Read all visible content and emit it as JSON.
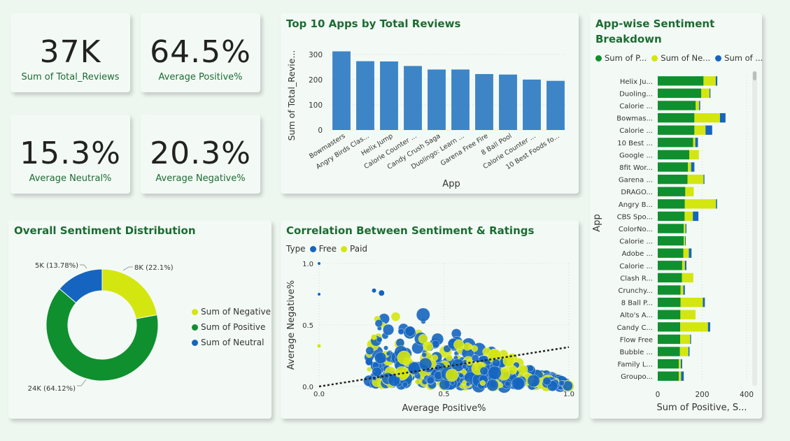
{
  "kpis": [
    {
      "value": "37K",
      "label": "Sum of Total_Reviews"
    },
    {
      "value": "64.5%",
      "label": "Average Positive%"
    },
    {
      "value": "15.3%",
      "label": "Average Neutral%"
    },
    {
      "value": "20.3%",
      "label": "Average Negative%"
    }
  ],
  "colors": {
    "positive": "#0f8f2e",
    "negative": "#d4e60f",
    "neutral": "#1565c0",
    "bar": "#3d85c6"
  },
  "chart_data": [
    {
      "type": "bar",
      "title": "Top 10 Apps by Total Reviews",
      "xlabel": "App",
      "ylabel": "Sum of Total_Revie...",
      "ylim": [
        0,
        330
      ],
      "yticks": [
        0,
        100,
        200,
        300
      ],
      "categories": [
        "Bowmasters",
        "Angry Birds Clas...",
        "Helix Jump",
        "Calorie Counter ...",
        "Candy Crush Saga",
        "Duolingo: Learn ...",
        "Garena Free Fire",
        "8 Ball Pool",
        "Calorie Counter ...",
        "10 Best Foods fo..."
      ],
      "values": [
        312,
        273,
        272,
        254,
        240,
        240,
        222,
        220,
        200,
        195
      ]
    },
    {
      "type": "pie",
      "title": "Overall Sentiment Distribution",
      "legend": [
        "Sum of Negative",
        "Sum of Positive",
        "Sum of Neutral"
      ],
      "values": [
        8,
        24,
        5
      ],
      "labels": [
        "8K (22.1%)",
        "24K (64.12%)",
        "5K (13.78%)"
      ],
      "percents": [
        22.1,
        64.12,
        13.78
      ]
    },
    {
      "type": "scatter",
      "title": "Correlation Between Sentiment & Ratings",
      "legend_title": "Type",
      "legend": [
        "Free",
        "Paid"
      ],
      "xlabel": "Average Positive%",
      "ylabel": "Average Negative%",
      "xlim": [
        0,
        1
      ],
      "ylim": [
        0,
        1
      ],
      "xticks": [
        "0.0",
        "0.5",
        "1.0"
      ],
      "yticks": [
        "0.0",
        "0.5",
        "1.0"
      ],
      "trend": [
        [
          0,
          0
        ],
        [
          1,
          0.32
        ]
      ]
    },
    {
      "type": "bar",
      "orientation": "horizontal",
      "stacked": true,
      "title": "App-wise Sentiment Breakdown",
      "legend": [
        "Sum of P...",
        "Sum of Ne...",
        "Sum of ..."
      ],
      "xlabel": "Sum of Positive, S...",
      "ylabel": "App",
      "xlim": [
        0,
        400
      ],
      "xticks": [
        "0",
        "200",
        "400"
      ],
      "categories": [
        "Helix Ju...",
        "Duoling...",
        "Calorie ...",
        "Bowmas...",
        "Calorie ...",
        "10 Best ...",
        "Google ...",
        "8fit Wor...",
        "Garena ...",
        "DRAGO...",
        "Angry B...",
        "CBS Spo...",
        "ColorNo...",
        "Calorie ...",
        "Adobe ...",
        "Calorie ...",
        "Clash R...",
        "Crunchy...",
        "8 Ball P...",
        "Alto's A...",
        "Candy C...",
        "Flow Free",
        "Bubble ...",
        "Family L...",
        "Groupo..."
      ],
      "series": [
        {
          "name": "Sum of P...",
          "values": [
            206,
            196,
            171,
            165,
            165,
            159,
            142,
            136,
            134,
            124,
            122,
            121,
            117,
            117,
            115,
            110,
            109,
            103,
            103,
            102,
            101,
            101,
            100,
            95,
            95
          ]
        },
        {
          "name": "Sum of Ne...",
          "values": [
            55,
            37,
            15,
            115,
            50,
            10,
            43,
            14,
            72,
            38,
            140,
            37,
            8,
            6,
            25,
            12,
            51,
            12,
            100,
            68,
            125,
            45,
            38,
            9,
            10
          ]
        },
        {
          "name": "Sum of ...",
          "values": [
            7,
            4,
            5,
            25,
            30,
            12,
            0,
            15,
            4,
            0,
            5,
            25,
            4,
            3,
            12,
            7,
            0,
            7,
            9,
            0,
            10,
            4,
            5,
            6,
            12
          ]
        }
      ]
    }
  ]
}
